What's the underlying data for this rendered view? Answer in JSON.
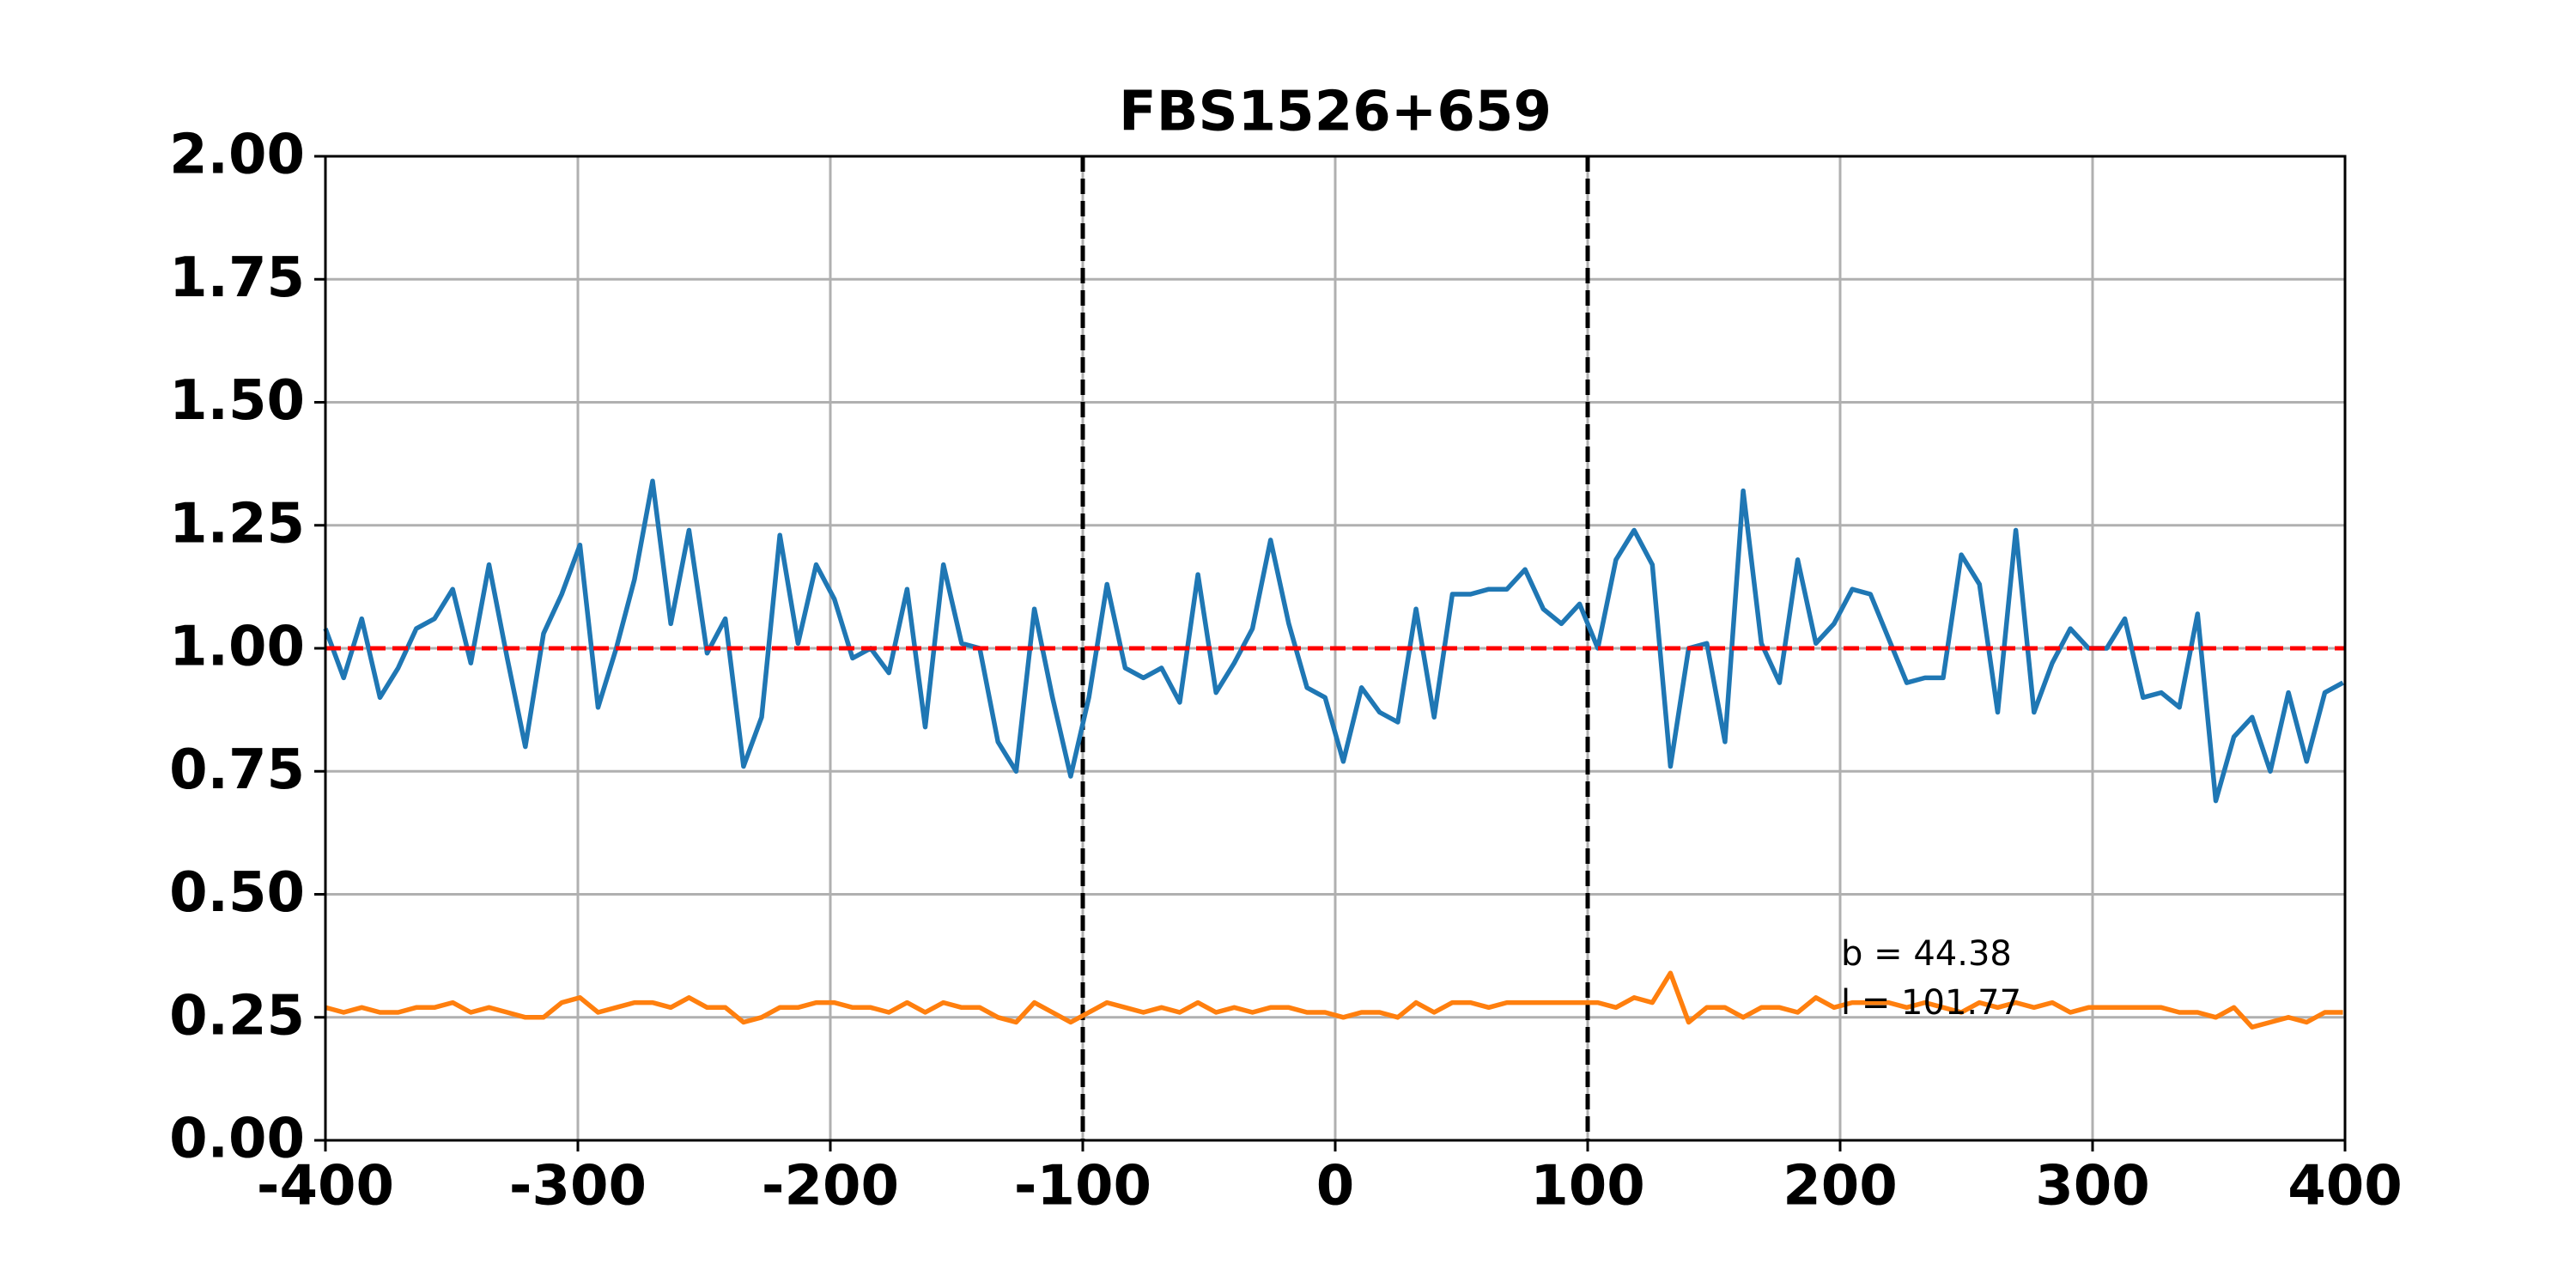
{
  "chart_data": {
    "type": "line",
    "title": "FBS1526+659",
    "x": [
      -400,
      -392.8,
      -385.6,
      -378.4,
      -371.2,
      -364,
      -356.8,
      -349.6,
      -342.4,
      -335.2,
      -328,
      -320.8,
      -313.6,
      -306.4,
      -299.2,
      -292,
      -284.8,
      -277.6,
      -270.4,
      -263.2,
      -256,
      -248.8,
      -241.6,
      -234.4,
      -227.2,
      -220,
      -212.8,
      -205.6,
      -198.4,
      -191.2,
      -184,
      -176.8,
      -169.6,
      -162.4,
      -155.2,
      -148,
      -140.8,
      -133.6,
      -126.4,
      -119.2,
      -112,
      -104.8,
      -97.6,
      -90.4,
      -83.2,
      -76,
      -68.8,
      -61.6,
      -54.4,
      -47.2,
      -40,
      -32.8,
      -25.6,
      -18.4,
      -11.2,
      -4,
      3.2,
      10.4,
      17.6,
      24.8,
      32,
      39.2,
      46.4,
      53.6,
      60.8,
      68,
      75.2,
      82.4,
      89.6,
      96.8,
      104,
      111.2,
      118.4,
      125.6,
      132.8,
      140,
      147.2,
      154.4,
      161.6,
      168.8,
      176,
      183.2,
      190.4,
      197.6,
      204.8,
      212,
      219.2,
      226.4,
      233.6,
      240.8,
      248,
      255.2,
      262.4,
      269.6,
      276.8,
      284,
      291.2,
      298.4,
      305.6,
      312.8,
      320,
      327.2,
      334.4,
      341.6,
      348.8,
      356,
      363.2,
      370.4,
      377.6,
      384.8,
      392,
      399.2
    ],
    "series": [
      {
        "color": "#1f77b4",
        "values": [
          1.04,
          0.94,
          1.06,
          0.9,
          0.96,
          1.04,
          1.06,
          1.12,
          0.97,
          1.17,
          0.98,
          0.8,
          1.03,
          1.11,
          1.21,
          0.88,
          1.0,
          1.14,
          1.34,
          1.05,
          1.24,
          0.99,
          1.06,
          0.76,
          0.86,
          1.23,
          1.01,
          1.17,
          1.1,
          0.98,
          1.0,
          0.95,
          1.12,
          0.84,
          1.17,
          1.01,
          1.0,
          0.81,
          0.75,
          1.08,
          0.9,
          0.74,
          0.9,
          1.13,
          0.96,
          0.94,
          0.96,
          0.89,
          1.15,
          0.91,
          0.97,
          1.04,
          1.22,
          1.05,
          0.92,
          0.9,
          0.77,
          0.92,
          0.87,
          0.85,
          1.08,
          0.86,
          1.11,
          1.11,
          1.12,
          1.12,
          1.16,
          1.08,
          1.05,
          1.09,
          1.0,
          1.18,
          1.24,
          1.17,
          0.76,
          1.0,
          1.01,
          0.81,
          1.32,
          1.01,
          0.93,
          1.18,
          1.01,
          1.05,
          1.12,
          1.11,
          1.02,
          0.93,
          0.94,
          0.94,
          1.19,
          1.13,
          0.87,
          1.24,
          0.87,
          0.97,
          1.04,
          1.0,
          1.0,
          1.06,
          0.9,
          0.91,
          0.88,
          1.07,
          0.69,
          0.82,
          0.86,
          0.75,
          0.91,
          0.77,
          0.91,
          0.93
        ]
      },
      {
        "color": "#ff7f0e",
        "values": [
          0.27,
          0.26,
          0.27,
          0.26,
          0.26,
          0.27,
          0.27,
          0.28,
          0.26,
          0.27,
          0.26,
          0.25,
          0.25,
          0.28,
          0.29,
          0.26,
          0.27,
          0.28,
          0.28,
          0.27,
          0.29,
          0.27,
          0.27,
          0.24,
          0.25,
          0.27,
          0.27,
          0.28,
          0.28,
          0.27,
          0.27,
          0.26,
          0.28,
          0.26,
          0.28,
          0.27,
          0.27,
          0.25,
          0.24,
          0.28,
          0.26,
          0.24,
          0.26,
          0.28,
          0.27,
          0.26,
          0.27,
          0.26,
          0.28,
          0.26,
          0.27,
          0.26,
          0.27,
          0.27,
          0.26,
          0.26,
          0.25,
          0.26,
          0.26,
          0.25,
          0.28,
          0.26,
          0.28,
          0.28,
          0.27,
          0.28,
          0.28,
          0.28,
          0.28,
          0.28,
          0.28,
          0.27,
          0.29,
          0.28,
          0.34,
          0.24,
          0.27,
          0.27,
          0.25,
          0.27,
          0.27,
          0.26,
          0.29,
          0.27,
          0.28,
          0.28,
          0.28,
          0.27,
          0.28,
          0.27,
          0.26,
          0.28,
          0.27,
          0.28,
          0.27,
          0.28,
          0.26,
          0.27,
          0.27,
          0.27,
          0.27,
          0.27,
          0.26,
          0.26,
          0.25,
          0.27,
          0.23,
          0.24,
          0.25,
          0.24,
          0.26,
          0.26
        ]
      }
    ],
    "hlines": [
      {
        "y": 1,
        "color": "#ff0000"
      }
    ],
    "vlines": [
      {
        "x": -100,
        "color": "#000000"
      },
      {
        "x": 100,
        "color": "#000000"
      }
    ],
    "annotations": [
      "b = 44.38",
      "l = 101.77"
    ],
    "xlim": [
      -400,
      400
    ],
    "xticks": [
      -400,
      -300,
      -200,
      -100,
      0,
      100,
      200,
      300,
      400
    ],
    "ylim": [
      0,
      2
    ],
    "yticks": [
      {
        "value": 0,
        "label": "0.00"
      },
      {
        "value": 0.25,
        "label": "0.25"
      },
      {
        "value": 0.5,
        "label": "0.50"
      },
      {
        "value": 0.75,
        "label": "0.75"
      },
      {
        "value": 1,
        "label": "1.00"
      },
      {
        "value": 1.25,
        "label": "1.25"
      },
      {
        "value": 1.5,
        "label": "1.50"
      },
      {
        "value": 1.75,
        "label": "1.75"
      },
      {
        "value": 2,
        "label": "2.00"
      }
    ],
    "grid": true
  }
}
